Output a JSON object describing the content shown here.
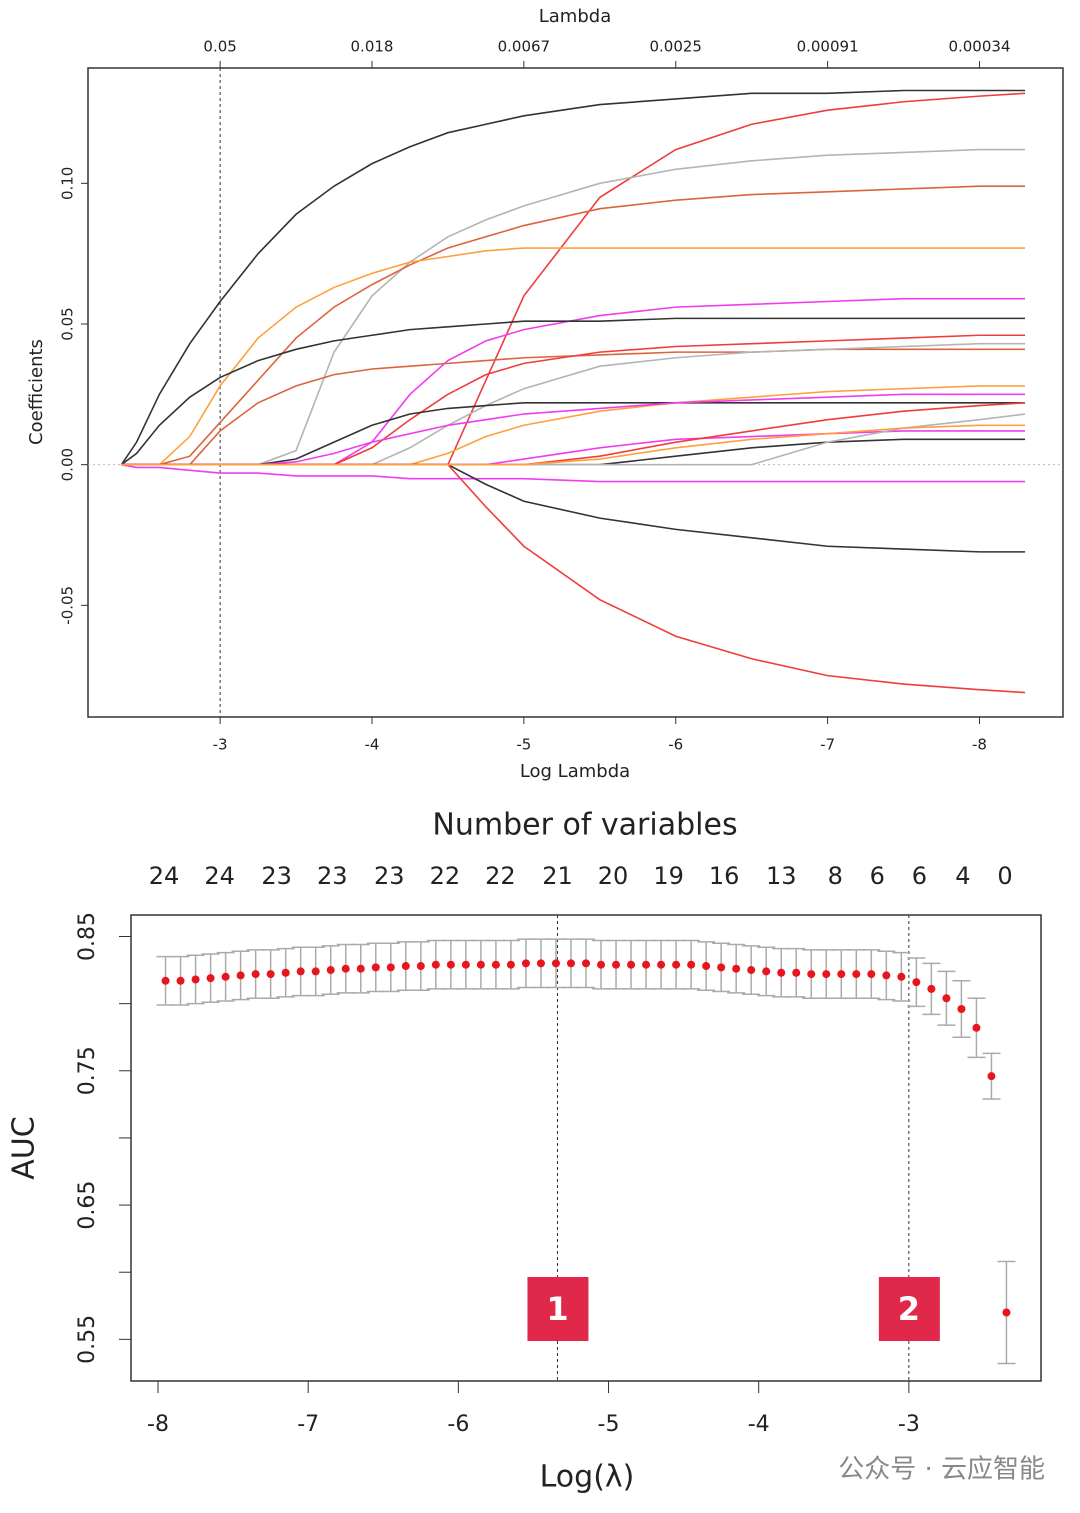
{
  "chart_data": [
    {
      "type": "line",
      "x2label": "Lambda",
      "xlabel": "Log Lambda",
      "ylabel": "Coefficients",
      "x": [
        -2.35,
        -2.45,
        -2.6,
        -2.8,
        -3,
        -3.25,
        -3.5,
        -3.75,
        -4,
        -4.25,
        -4.5,
        -4.75,
        -5,
        -5.5,
        -6,
        -6.5,
        -7,
        -7.5,
        -8,
        -8.3
      ],
      "series": [
        {
          "color": "#333333",
          "values": [
            0,
            0.008,
            0.025,
            0.043,
            0.058,
            0.075,
            0.089,
            0.099,
            0.107,
            0.113,
            0.118,
            0.121,
            0.124,
            0.128,
            0.13,
            0.132,
            0.132,
            0.133,
            0.133,
            0.133
          ]
        },
        {
          "color": "#f03c3c",
          "values": [
            0,
            0,
            0,
            0,
            0,
            0,
            0,
            0,
            0,
            0,
            0,
            0.03,
            0.06,
            0.095,
            0.112,
            0.121,
            0.126,
            0.129,
            0.131,
            0.132
          ]
        },
        {
          "color": "#b4b4b4",
          "values": [
            0,
            0,
            0,
            0,
            0,
            0,
            0.005,
            0.04,
            0.06,
            0.072,
            0.081,
            0.087,
            0.092,
            0.1,
            0.105,
            0.108,
            0.11,
            0.111,
            0.112,
            0.112
          ]
        },
        {
          "color": "#dc643c",
          "values": [
            0,
            0,
            0,
            0.003,
            0.015,
            0.03,
            0.045,
            0.056,
            0.064,
            0.071,
            0.077,
            0.081,
            0.085,
            0.091,
            0.094,
            0.096,
            0.097,
            0.098,
            0.099,
            0.099
          ]
        },
        {
          "color": "#ffa03c",
          "values": [
            0,
            0,
            0,
            0.01,
            0.028,
            0.045,
            0.056,
            0.063,
            0.068,
            0.072,
            0.074,
            0.076,
            0.077,
            0.077,
            0.077,
            0.077,
            0.077,
            0.077,
            0.077,
            0.077
          ]
        },
        {
          "color": "#f03cf0",
          "values": [
            0,
            0,
            0,
            0,
            0,
            0,
            0,
            0,
            0.008,
            0.025,
            0.037,
            0.044,
            0.048,
            0.053,
            0.056,
            0.057,
            0.058,
            0.059,
            0.059,
            0.059
          ]
        },
        {
          "color": "#333333",
          "values": [
            0,
            0.004,
            0.014,
            0.024,
            0.031,
            0.037,
            0.041,
            0.044,
            0.046,
            0.048,
            0.049,
            0.05,
            0.051,
            0.051,
            0.052,
            0.052,
            0.052,
            0.052,
            0.052,
            0.052
          ]
        },
        {
          "color": "#dc643c",
          "values": [
            0,
            0,
            0,
            0,
            0.012,
            0.022,
            0.028,
            0.032,
            0.034,
            0.035,
            0.036,
            0.037,
            0.038,
            0.039,
            0.04,
            0.04,
            0.041,
            0.041,
            0.041,
            0.041
          ]
        },
        {
          "color": "#f03c3c",
          "values": [
            0,
            0,
            0,
            0,
            0,
            0,
            0,
            0,
            0.006,
            0.016,
            0.025,
            0.032,
            0.036,
            0.04,
            0.042,
            0.043,
            0.044,
            0.045,
            0.046,
            0.046
          ]
        },
        {
          "color": "#b4b4b4",
          "values": [
            0,
            0,
            0,
            0,
            0,
            0,
            0,
            0,
            0,
            0.006,
            0.014,
            0.021,
            0.027,
            0.035,
            0.038,
            0.04,
            0.041,
            0.042,
            0.043,
            0.043
          ]
        },
        {
          "color": "#333333",
          "values": [
            0,
            0,
            0,
            0,
            0,
            0,
            0.002,
            0.008,
            0.014,
            0.018,
            0.02,
            0.021,
            0.022,
            0.022,
            0.022,
            0.022,
            0.022,
            0.022,
            0.022,
            0.022
          ]
        },
        {
          "color": "#ffa03c",
          "values": [
            0,
            0,
            0,
            0,
            0,
            0,
            0,
            0,
            0,
            0,
            0.004,
            0.01,
            0.014,
            0.019,
            0.022,
            0.024,
            0.026,
            0.027,
            0.028,
            0.028
          ]
        },
        {
          "color": "#f03cf0",
          "values": [
            0,
            0,
            0,
            0,
            0,
            0,
            0.001,
            0.004,
            0.008,
            0.011,
            0.014,
            0.016,
            0.018,
            0.02,
            0.022,
            0.023,
            0.024,
            0.025,
            0.025,
            0.025
          ]
        },
        {
          "color": "#f03cf0",
          "values": [
            0,
            0,
            0,
            0,
            0,
            0,
            0,
            0,
            0,
            0,
            0,
            0,
            0.002,
            0.006,
            0.009,
            0.01,
            0.011,
            0.012,
            0.012,
            0.012
          ]
        },
        {
          "color": "#333333",
          "values": [
            0,
            0,
            0,
            0,
            0,
            0,
            0,
            0,
            0,
            0,
            0,
            0,
            0,
            0,
            0.003,
            0.006,
            0.008,
            0.009,
            0.009,
            0.009
          ]
        },
        {
          "color": "#b4b4b4",
          "values": [
            0,
            0,
            0,
            0,
            0,
            0,
            0,
            0,
            0,
            0,
            0,
            0,
            0,
            0,
            0,
            0,
            0.008,
            0.013,
            0.016,
            0.018
          ]
        },
        {
          "color": "#f03cf0",
          "values": [
            0,
            -0.001,
            -0.001,
            -0.002,
            -0.003,
            -0.003,
            -0.004,
            -0.004,
            -0.004,
            -0.005,
            -0.005,
            -0.005,
            -0.005,
            -0.006,
            -0.006,
            -0.006,
            -0.006,
            -0.006,
            -0.006,
            -0.006
          ]
        },
        {
          "color": "#333333",
          "values": [
            0,
            0,
            0,
            0,
            0,
            0,
            0,
            0,
            0,
            0,
            0,
            -0.007,
            -0.013,
            -0.019,
            -0.023,
            -0.026,
            -0.029,
            -0.03,
            -0.031,
            -0.031
          ]
        },
        {
          "color": "#f03c3c",
          "values": [
            0,
            0,
            0,
            0,
            0,
            0,
            0,
            0,
            0,
            0,
            0,
            -0.015,
            -0.029,
            -0.048,
            -0.061,
            -0.069,
            -0.075,
            -0.078,
            -0.08,
            -0.081
          ]
        },
        {
          "color": "#f03c3c",
          "values": [
            0,
            0,
            0,
            0,
            0,
            0,
            0,
            0,
            0,
            0,
            0,
            0,
            0,
            0.003,
            0.008,
            0.012,
            0.016,
            0.019,
            0.021,
            0.022
          ]
        },
        {
          "color": "#ffa03c",
          "values": [
            0,
            0,
            0,
            0,
            0,
            0,
            0,
            0,
            0,
            0,
            0,
            0,
            0,
            0.002,
            0.006,
            0.009,
            0.011,
            0.013,
            0.014,
            0.014
          ]
        }
      ],
      "xlim": [
        -2.13,
        -8.55
      ],
      "ylim": [
        -0.0897,
        0.141
      ],
      "xticks": [
        -3,
        -4,
        -5,
        -6,
        -7,
        -8
      ],
      "yticks": [
        -0.05,
        {
          "value": 0,
          "label": "0.00"
        },
        0.05,
        {
          "value": 0.1,
          "label": "0.10"
        }
      ],
      "x2ticks": [
        {
          "value": -3,
          "label": "0.05"
        },
        {
          "value": -4,
          "label": "0.018"
        },
        {
          "value": -5,
          "label": "0.0067"
        },
        {
          "value": -6,
          "label": "0.0025"
        },
        {
          "value": -7,
          "label": "0.00091"
        },
        {
          "value": -8,
          "label": "0.00034"
        }
      ],
      "vline": -3,
      "hline": 0
    },
    {
      "type": "errorbar",
      "title": "Number of variables",
      "xlabel": "Log(λ)",
      "ylabel": "AUC",
      "color": "#e8141e",
      "x": [
        -7.95,
        -7.85,
        -7.75,
        -7.65,
        -7.55,
        -7.45,
        -7.35,
        -7.25,
        -7.15,
        -7.05,
        -6.95,
        -6.85,
        -6.75,
        -6.65,
        -6.55,
        -6.45,
        -6.35,
        -6.25,
        -6.15,
        -6.05,
        -5.95,
        -5.85,
        -5.75,
        -5.65,
        -5.55,
        -5.45,
        -5.35,
        -5.25,
        -5.15,
        -5.05,
        -4.95,
        -4.85,
        -4.75,
        -4.65,
        -4.55,
        -4.45,
        -4.35,
        -4.25,
        -4.15,
        -4.05,
        -3.95,
        -3.85,
        -3.75,
        -3.65,
        -3.55,
        -3.45,
        -3.35,
        -3.25,
        -3.15,
        -3.05,
        -2.95,
        -2.85,
        -2.75,
        -2.65,
        -2.55,
        -2.45,
        -2.35
      ],
      "values": [
        0.817,
        0.817,
        0.818,
        0.819,
        0.82,
        0.821,
        0.822,
        0.822,
        0.823,
        0.824,
        0.824,
        0.825,
        0.826,
        0.826,
        0.827,
        0.827,
        0.828,
        0.828,
        0.829,
        0.829,
        0.829,
        0.829,
        0.829,
        0.829,
        0.83,
        0.83,
        0.83,
        0.83,
        0.83,
        0.829,
        0.829,
        0.829,
        0.829,
        0.829,
        0.829,
        0.829,
        0.828,
        0.827,
        0.826,
        0.825,
        0.824,
        0.823,
        0.823,
        0.822,
        0.822,
        0.822,
        0.822,
        0.822,
        0.821,
        0.82,
        0.816,
        0.811,
        0.804,
        0.796,
        0.782,
        0.746,
        0.57
      ],
      "errors": [
        0.018,
        0.018,
        0.018,
        0.018,
        0.018,
        0.018,
        0.018,
        0.018,
        0.018,
        0.018,
        0.018,
        0.018,
        0.018,
        0.018,
        0.018,
        0.018,
        0.018,
        0.018,
        0.018,
        0.018,
        0.018,
        0.018,
        0.018,
        0.018,
        0.018,
        0.018,
        0.018,
        0.018,
        0.018,
        0.018,
        0.018,
        0.018,
        0.018,
        0.018,
        0.018,
        0.018,
        0.018,
        0.018,
        0.018,
        0.018,
        0.018,
        0.018,
        0.018,
        0.018,
        0.018,
        0.018,
        0.018,
        0.018,
        0.018,
        0.018,
        0.018,
        0.019,
        0.02,
        0.021,
        0.022,
        0.017,
        0.038
      ],
      "xlim": [
        -8.18,
        -2.12
      ],
      "ylim": [
        0.519,
        0.866
      ],
      "xticks": [
        -8,
        -7,
        -6,
        -5,
        -4,
        -3
      ],
      "yticks": [
        0.55,
        0.65,
        0.75,
        0.85
      ],
      "yminor": [
        0.6,
        0.7,
        0.8
      ],
      "x2ticks": [
        {
          "value": -7.96,
          "label": "24"
        },
        {
          "value": -7.59,
          "label": "24"
        },
        {
          "value": -7.21,
          "label": "23"
        },
        {
          "value": -6.84,
          "label": "23"
        },
        {
          "value": -6.46,
          "label": "23"
        },
        {
          "value": -6.09,
          "label": "22"
        },
        {
          "value": -5.72,
          "label": "22"
        },
        {
          "value": -5.34,
          "label": "21"
        },
        {
          "value": -4.97,
          "label": "20"
        },
        {
          "value": -4.6,
          "label": "19"
        },
        {
          "value": -4.23,
          "label": "16"
        },
        {
          "value": -3.85,
          "label": "13"
        },
        {
          "value": -3.49,
          "label": "8"
        },
        {
          "value": -3.21,
          "label": "6"
        },
        {
          "value": -2.93,
          "label": "6"
        },
        {
          "value": -2.64,
          "label": "4"
        },
        {
          "value": -2.36,
          "label": "0"
        }
      ],
      "vlines": [
        -5.34,
        -3
      ],
      "annotations": [
        "1",
        "2"
      ]
    }
  ],
  "watermark": "公众号 · 云应智能"
}
